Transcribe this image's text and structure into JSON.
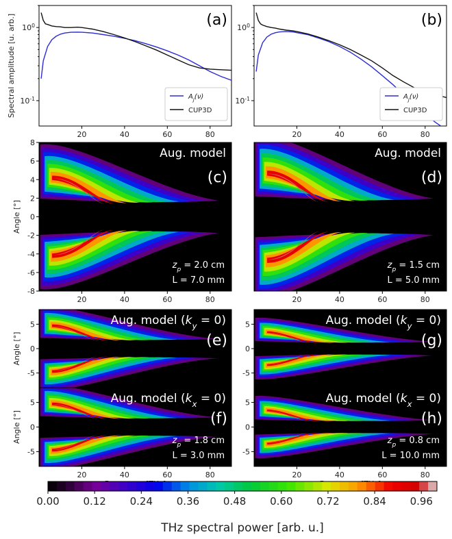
{
  "chart_data": [
    {
      "panel": "(a)",
      "type": "line",
      "scale_y": "log",
      "ylabel": "Spectral amplitude [u. arb.]",
      "xlim": [
        0,
        90
      ],
      "ylim": [
        0.045,
        2.0
      ],
      "x_ticks": [
        "20",
        "40",
        "60",
        "80"
      ],
      "y_ticks": [
        "10^0",
        "10^-1"
      ],
      "legend": {
        "placement": "bottom-right",
        "entries": [
          "A_J(ν)",
          "CUP3D"
        ]
      },
      "series": [
        {
          "name": "A_J(ν)",
          "color": "#2b2bd6",
          "x": [
            1,
            2,
            4,
            6,
            8,
            10,
            12,
            15,
            18,
            20,
            25,
            30,
            35,
            40,
            45,
            50,
            55,
            60,
            65,
            70,
            75,
            80,
            85,
            90
          ],
          "y": [
            0.2,
            0.35,
            0.55,
            0.68,
            0.76,
            0.81,
            0.84,
            0.86,
            0.865,
            0.86,
            0.84,
            0.8,
            0.76,
            0.71,
            0.66,
            0.6,
            0.54,
            0.48,
            0.42,
            0.36,
            0.3,
            0.25,
            0.215,
            0.19
          ]
        },
        {
          "name": "CUP3D",
          "color": "#111111",
          "x": [
            1,
            2,
            3,
            4,
            6,
            8,
            10,
            12,
            15,
            18,
            20,
            25,
            30,
            35,
            40,
            45,
            50,
            55,
            60,
            65,
            70,
            75,
            80,
            85,
            90
          ],
          "y": [
            1.6,
            1.25,
            1.12,
            1.1,
            1.05,
            1.03,
            1.02,
            1.0,
            1.0,
            1.01,
            1.0,
            0.95,
            0.88,
            0.8,
            0.72,
            0.64,
            0.56,
            0.49,
            0.42,
            0.36,
            0.31,
            0.28,
            0.27,
            0.265,
            0.26
          ]
        }
      ]
    },
    {
      "panel": "(b)",
      "type": "line",
      "scale_y": "log",
      "xlim": [
        0,
        90
      ],
      "ylim": [
        0.045,
        2.0
      ],
      "x_ticks": [
        "20",
        "40",
        "60",
        "80"
      ],
      "y_ticks": [
        "10^0",
        "10^-1"
      ],
      "legend": {
        "placement": "bottom-right",
        "entries": [
          "A_J(ν)",
          "CUP3D"
        ]
      },
      "series": [
        {
          "name": "A_J(ν)",
          "color": "#2b2bd6",
          "x": [
            1,
            2,
            4,
            6,
            8,
            10,
            12,
            15,
            18,
            20,
            25,
            30,
            35,
            40,
            45,
            50,
            55,
            60,
            65,
            70,
            75,
            80,
            85,
            90
          ],
          "y": [
            0.25,
            0.42,
            0.62,
            0.74,
            0.81,
            0.85,
            0.87,
            0.88,
            0.87,
            0.85,
            0.8,
            0.72,
            0.64,
            0.55,
            0.46,
            0.37,
            0.29,
            0.22,
            0.165,
            0.12,
            0.088,
            0.065,
            0.05,
            0.04
          ]
        },
        {
          "name": "CUP3D",
          "color": "#111111",
          "x": [
            1,
            2,
            3,
            4,
            6,
            8,
            10,
            12,
            15,
            18,
            20,
            25,
            30,
            35,
            40,
            45,
            50,
            55,
            60,
            65,
            70,
            75,
            80,
            85,
            90
          ],
          "y": [
            1.6,
            1.25,
            1.12,
            1.08,
            1.03,
            1.0,
            0.98,
            0.95,
            0.92,
            0.9,
            0.88,
            0.82,
            0.74,
            0.66,
            0.58,
            0.5,
            0.42,
            0.35,
            0.28,
            0.22,
            0.18,
            0.15,
            0.13,
            0.12,
            0.11
          ]
        }
      ]
    },
    {
      "panel": "(c)",
      "type": "heatmap",
      "title": "Aug. model",
      "ylabel": "Angle [°]",
      "xlim": [
        0,
        90
      ],
      "ylim": [
        -8,
        8
      ],
      "x_ticks": [
        "20",
        "40",
        "60",
        "80"
      ],
      "y_ticks": [
        "-8",
        "-6",
        "-4",
        "-2",
        "0",
        "2",
        "4",
        "6",
        "8"
      ],
      "annotations": [
        "z_p = 2.0 cm",
        "L = 7.0 mm"
      ],
      "lobes": [
        {
          "center_angle": 4.0,
          "peak_freq": 18
        },
        {
          "center_angle": -4.0,
          "peak_freq": 18
        }
      ]
    },
    {
      "panel": "(d)",
      "type": "heatmap",
      "title": "Aug. model",
      "xlim": [
        0,
        90
      ],
      "ylim": [
        -8,
        8
      ],
      "x_ticks": [
        "20",
        "40",
        "60",
        "80"
      ],
      "annotations": [
        "z_p = 1.5 cm",
        "L = 5.0 mm"
      ],
      "lobes": [
        {
          "center_angle": 4.5,
          "peak_freq": 18
        },
        {
          "center_angle": -4.5,
          "peak_freq": 18
        }
      ]
    },
    {
      "panel": "(e)",
      "type": "heatmap",
      "title": "Aug. model (k_y = 0)",
      "ylabel": "Angle [°]",
      "xlim": [
        0,
        90
      ],
      "ylim": [
        -8,
        8
      ],
      "y_ticks": [
        "-5",
        "0",
        "5"
      ],
      "lobes": [
        {
          "center_angle": 4.5,
          "peak_freq": 15
        },
        {
          "center_angle": -4.5,
          "peak_freq": 15
        }
      ]
    },
    {
      "panel": "(f)",
      "type": "heatmap",
      "title": "Aug. model (k_x = 0)",
      "ylabel": "Angle [°]",
      "xlabel": "Frequency [THz]",
      "xlim": [
        0,
        90
      ],
      "ylim": [
        -8,
        8
      ],
      "x_ticks": [
        "20",
        "40",
        "60",
        "80"
      ],
      "y_ticks": [
        "-5",
        "0",
        "5"
      ],
      "annotations": [
        "z_p = 1.8 cm",
        "L = 3.0 mm"
      ],
      "lobes": [
        {
          "center_angle": 4.5,
          "peak_freq": 15
        },
        {
          "center_angle": -4.5,
          "peak_freq": 15
        }
      ]
    },
    {
      "panel": "(g)",
      "type": "heatmap",
      "title": "Aug. model (k_y = 0)",
      "xlim": [
        0,
        90
      ],
      "ylim": [
        -8,
        8
      ],
      "y_ticks": [
        "-5",
        "0",
        "5"
      ],
      "lobes": [
        {
          "center_angle": 3.2,
          "peak_freq": 13
        },
        {
          "center_angle": -3.2,
          "peak_freq": 13
        }
      ]
    },
    {
      "panel": "(h)",
      "type": "heatmap",
      "title": "Aug. model (k_x = 0)",
      "xlabel": "Frequency [THz]",
      "xlim": [
        0,
        90
      ],
      "ylim": [
        -8,
        8
      ],
      "x_ticks": [
        "20",
        "40",
        "60",
        "80"
      ],
      "y_ticks": [
        "-5",
        "0",
        "5"
      ],
      "annotations": [
        "z_p = 0.8 cm",
        "L = 10.0 mm"
      ],
      "lobes": [
        {
          "center_angle": 3.2,
          "peak_freq": 13
        },
        {
          "center_angle": -3.2,
          "peak_freq": 13
        }
      ]
    }
  ],
  "colorbar": {
    "label": "THz spectral power [arb. u.]",
    "ticks": [
      "0.00",
      "0.12",
      "0.24",
      "0.36",
      "0.48",
      "0.60",
      "0.72",
      "0.84",
      "0.96"
    ],
    "range": [
      0,
      1.0
    ]
  }
}
